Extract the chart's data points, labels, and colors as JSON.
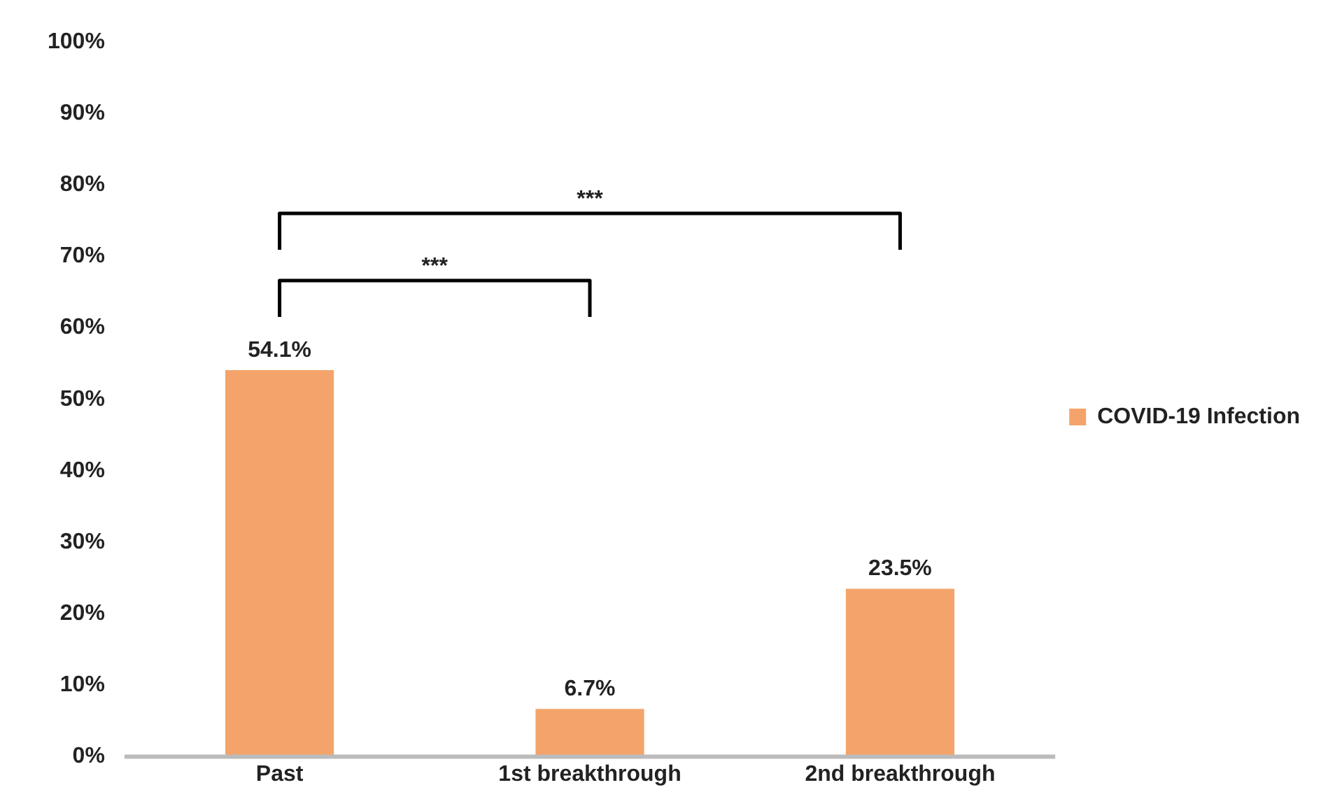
{
  "chart_data": {
    "type": "bar",
    "categories": [
      "Past",
      "1st breakthrough",
      "2nd breakthrough"
    ],
    "series": [
      {
        "name": "COVID-19 Infection",
        "color": "#f4a46a",
        "values": [
          54.1,
          6.7,
          23.5
        ],
        "value_labels": [
          "54.1%",
          "6.7%",
          "23.5%"
        ]
      }
    ],
    "ylim": [
      0,
      100
    ],
    "yticks": [
      {
        "value": 0,
        "label": "0%"
      },
      {
        "value": 10,
        "label": "10%"
      },
      {
        "value": 20,
        "label": "20%"
      },
      {
        "value": 30,
        "label": "30%"
      },
      {
        "value": 40,
        "label": "40%"
      },
      {
        "value": 50,
        "label": "50%"
      },
      {
        "value": 60,
        "label": "60%"
      },
      {
        "value": 70,
        "label": "70%"
      },
      {
        "value": 80,
        "label": "80%"
      },
      {
        "value": 90,
        "label": "90%"
      },
      {
        "value": 100,
        "label": "100%"
      }
    ],
    "annotations": [
      "***",
      "***"
    ],
    "legend": "right",
    "grid": false
  }
}
